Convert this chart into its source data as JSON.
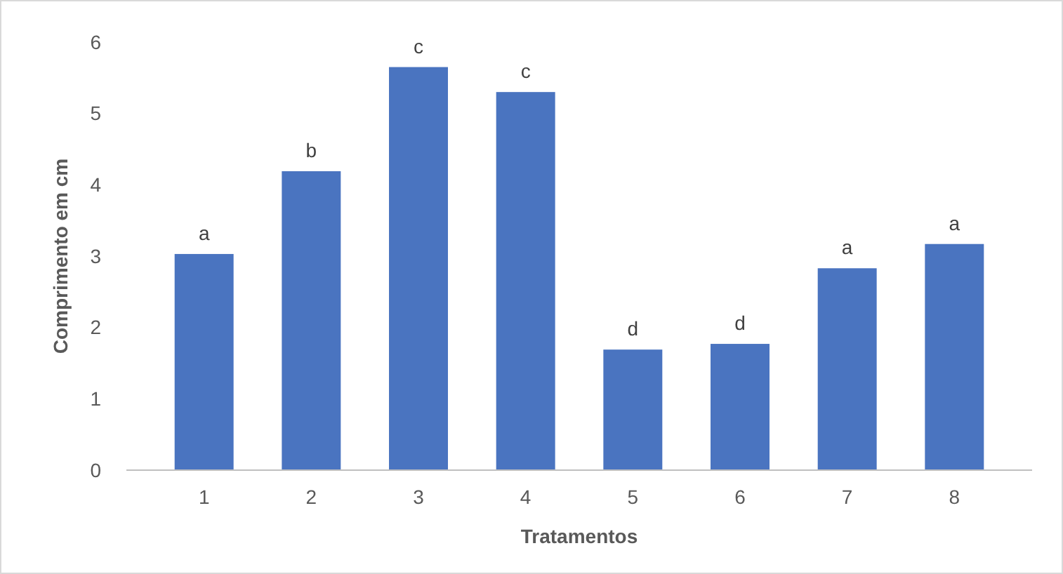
{
  "chart_data": {
    "type": "bar",
    "xlabel": "Tratamentos",
    "ylabel": "Comprimento em cm",
    "categories": [
      "1",
      "2",
      "3",
      "4",
      "5",
      "6",
      "7",
      "8"
    ],
    "values": [
      3.03,
      4.19,
      5.65,
      5.3,
      1.69,
      1.77,
      2.83,
      3.17
    ],
    "color": "#4a74c0",
    "ylim": [
      0,
      6
    ],
    "yticks": [
      0,
      1,
      2,
      3,
      4,
      5,
      6
    ],
    "grid": false,
    "annotations": [
      {
        "text": "a",
        "x": "1",
        "y": 3.03
      },
      {
        "text": "b",
        "x": "2",
        "y": 4.19
      },
      {
        "text": "c",
        "x": "3",
        "y": 5.65
      },
      {
        "text": "c",
        "x": "4",
        "y": 5.3
      },
      {
        "text": "d",
        "x": "5",
        "y": 1.69
      },
      {
        "text": "d",
        "x": "6",
        "y": 1.77
      },
      {
        "text": "a",
        "x": "7",
        "y": 2.83
      },
      {
        "text": "a",
        "x": "8",
        "y": 3.17
      }
    ]
  }
}
